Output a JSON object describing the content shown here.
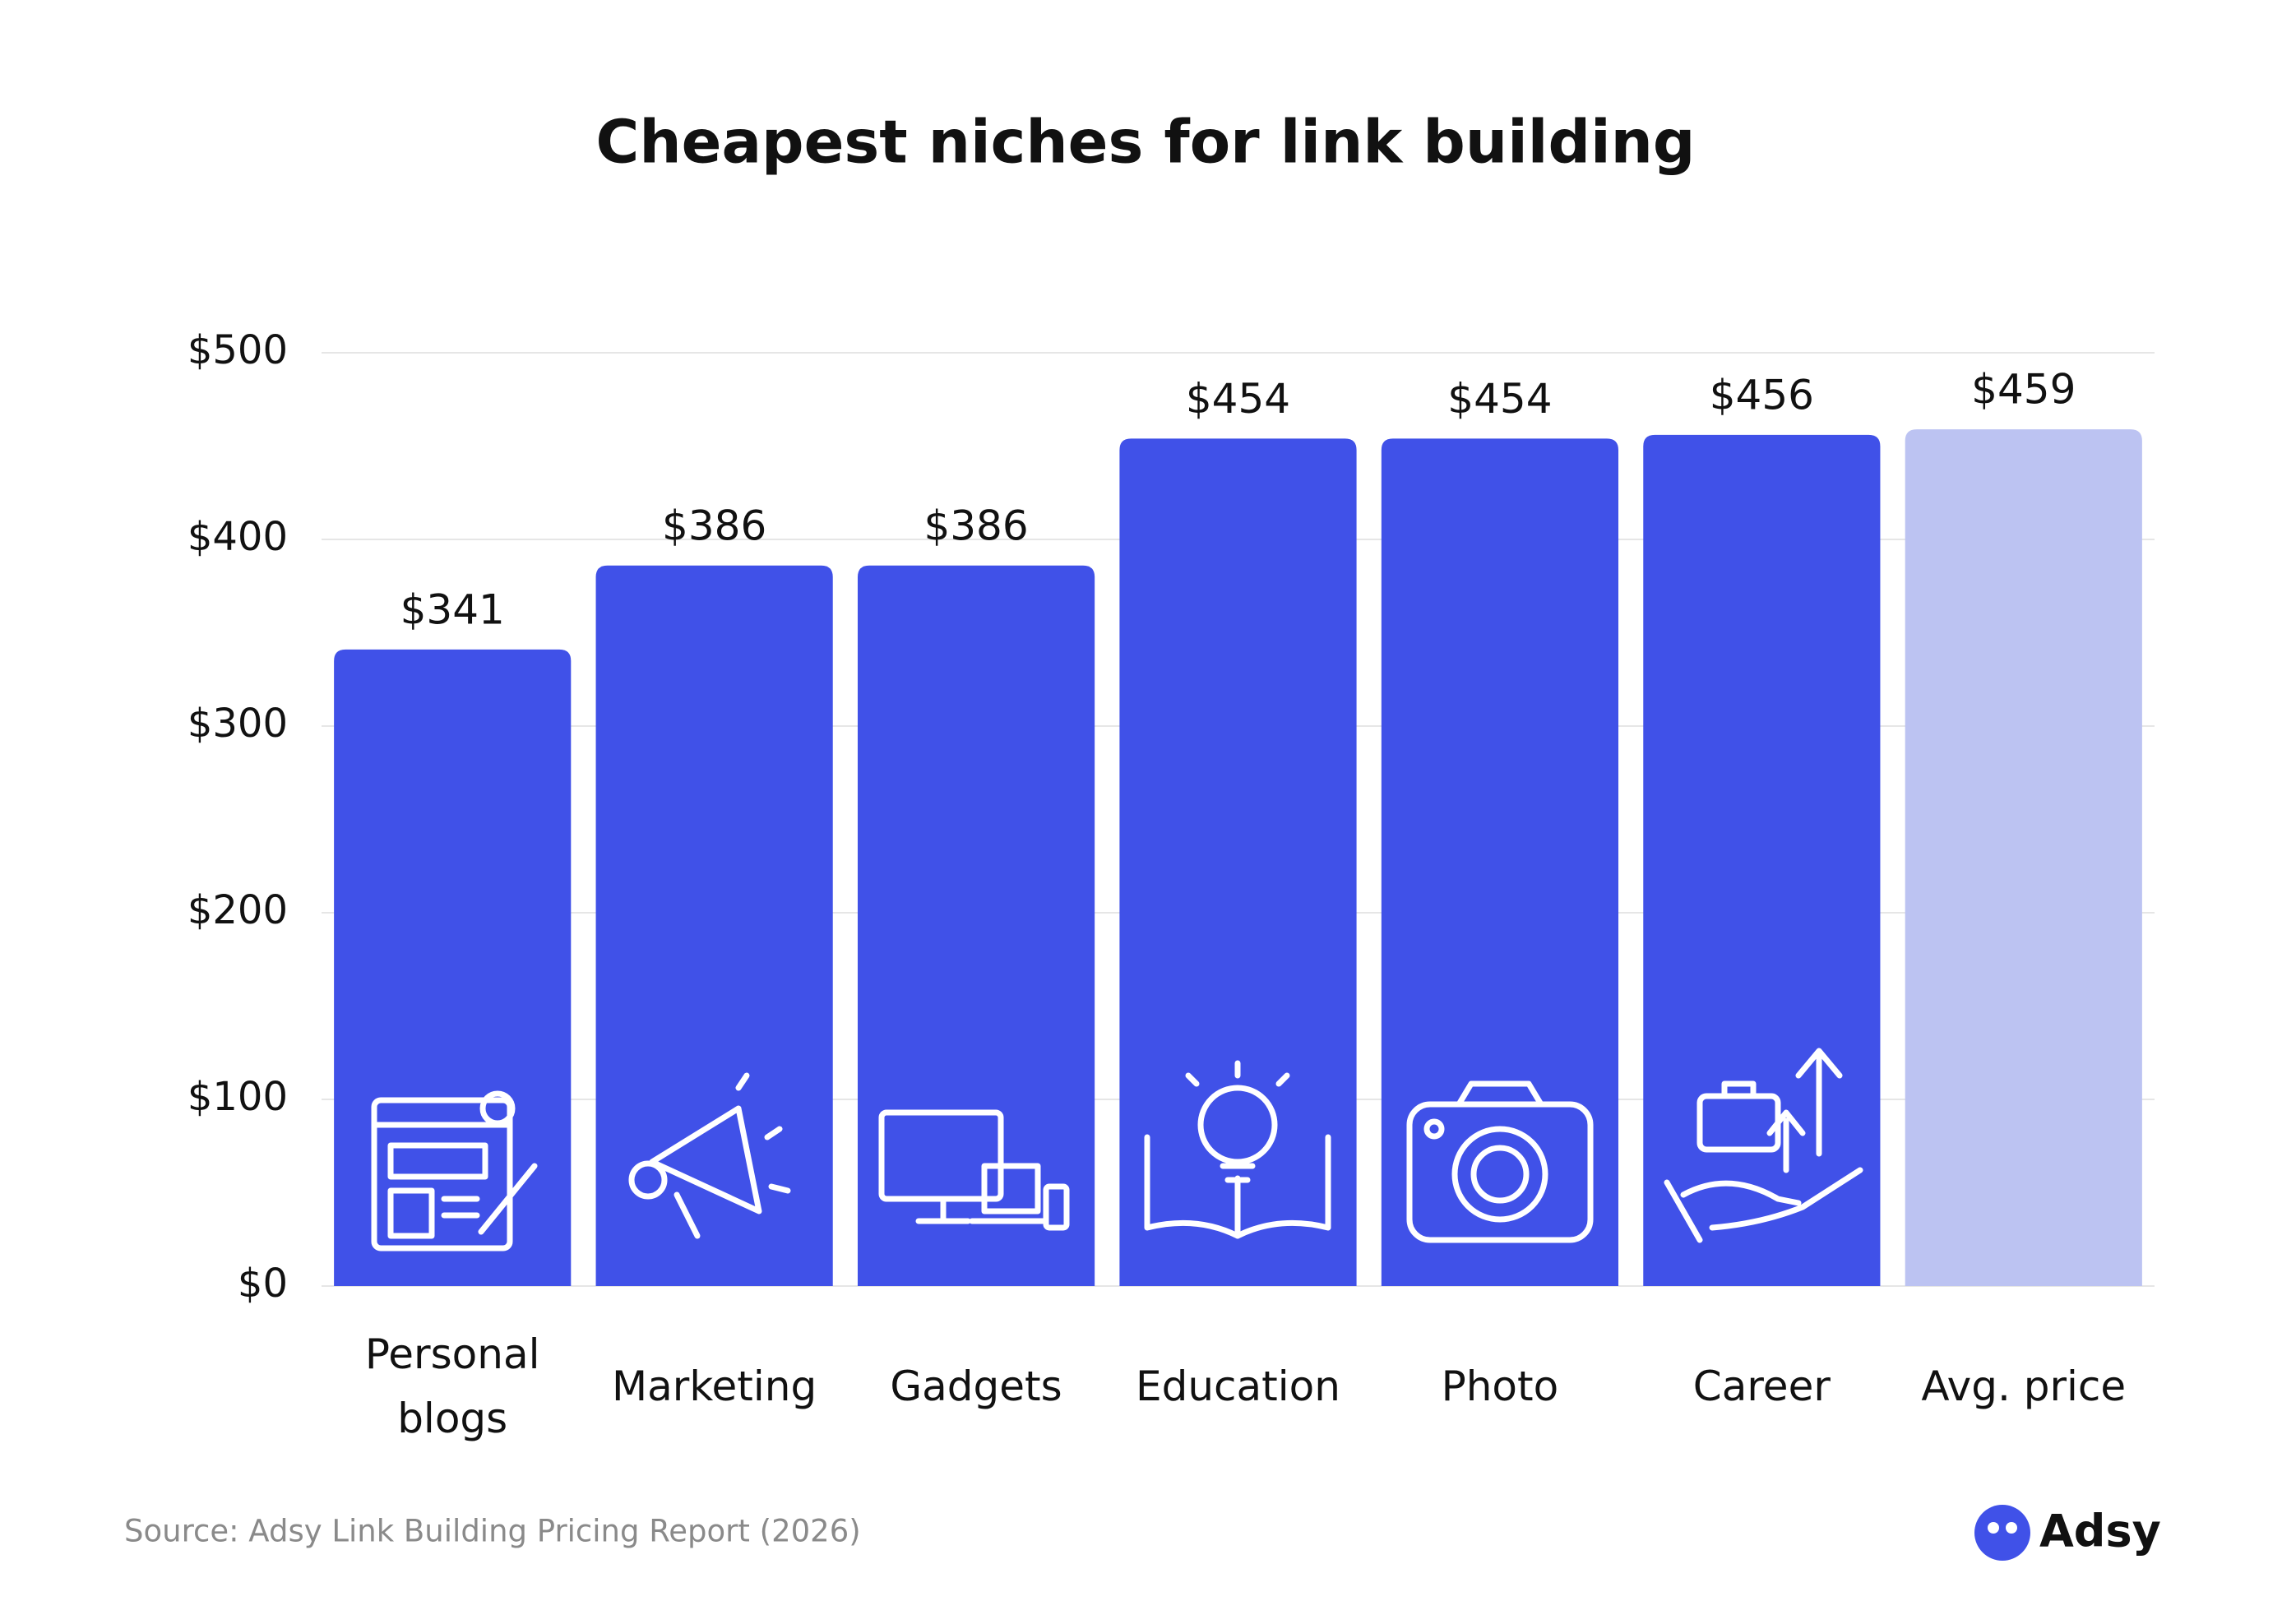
{
  "chart_data": {
    "type": "bar",
    "title": "Cheapest niches for link building",
    "categories": [
      "Personal blogs",
      "Marketing",
      "Gadgets",
      "Education",
      "Photo",
      "Career",
      "Avg. price"
    ],
    "values": [
      341,
      386,
      386,
      454,
      454,
      456,
      459
    ],
    "value_labels": [
      "$341",
      "$386",
      "$386",
      "$454",
      "$454",
      "$456",
      "$459"
    ],
    "colors": [
      "#4051e8",
      "#4051e8",
      "#4051e8",
      "#4051e8",
      "#4051e8",
      "#4051e8",
      "#bcc3f2"
    ],
    "ylim": [
      0,
      500
    ],
    "yticks": [
      {
        "value": 0,
        "label": "$0"
      },
      {
        "value": 100,
        "label": "$100"
      },
      {
        "value": 200,
        "label": "$200"
      },
      {
        "value": 300,
        "label": "$300"
      },
      {
        "value": 400,
        "label": "$400"
      },
      {
        "value": 500,
        "label": "$500"
      }
    ],
    "grid": true
  },
  "source": "Source: Adsy Link Building Pricing Report (2026)",
  "brand": "Adsy"
}
